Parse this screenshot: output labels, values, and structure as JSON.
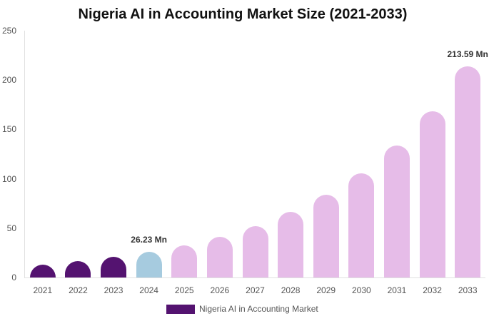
{
  "chart_data": {
    "type": "bar",
    "title": "Nigeria AI in Accounting Market Size (2021-2033)",
    "xlabel": "",
    "ylabel": "",
    "ylim": [
      0,
      250
    ],
    "yticks": [
      0,
      50,
      100,
      150,
      200,
      250
    ],
    "grid": false,
    "legend_position": "bottom",
    "categories": [
      "2021",
      "2022",
      "2023",
      "2024",
      "2025",
      "2026",
      "2027",
      "2028",
      "2029",
      "2030",
      "2031",
      "2032",
      "2033"
    ],
    "series": [
      {
        "name": "Nigeria AI in Accounting Market",
        "values": [
          13.0,
          16.5,
          21.0,
          26.23,
          32.5,
          41.0,
          52.0,
          66.5,
          84.0,
          105.5,
          133.5,
          168.5,
          213.59
        ]
      }
    ],
    "bar_colors": [
      "#541370",
      "#541370",
      "#541370",
      "#a6cbdf",
      "#e6bce8",
      "#e6bce8",
      "#e6bce8",
      "#e6bce8",
      "#e6bce8",
      "#e6bce8",
      "#e6bce8",
      "#e6bce8",
      "#e6bce8"
    ],
    "annotations": [
      {
        "category": "2024",
        "text": "26.23 Mn"
      },
      {
        "category": "2033",
        "text": "213.59 Mn"
      }
    ]
  },
  "legend": {
    "label": "Nigeria AI in Accounting Market",
    "color": "#541370"
  }
}
